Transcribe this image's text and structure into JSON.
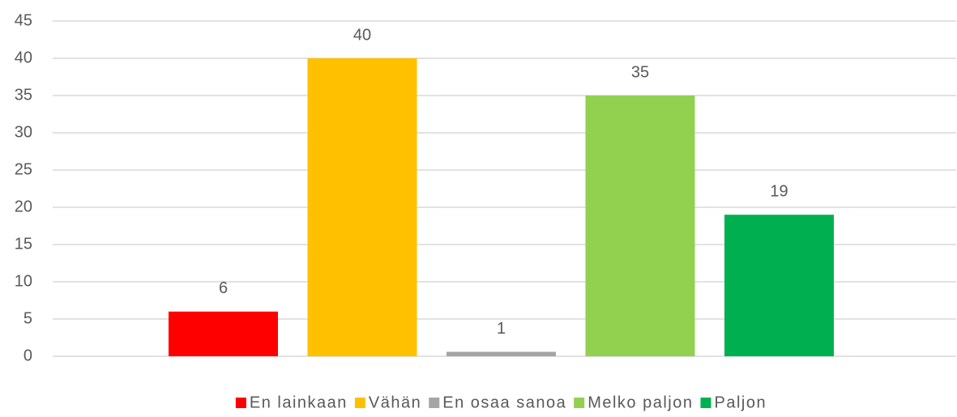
{
  "chart_data": {
    "type": "bar",
    "categories": [
      null
    ],
    "series": [
      {
        "name": "En lainkaan",
        "color": "#ff0000",
        "values": [
          6
        ]
      },
      {
        "name": "Vähän",
        "color": "#ffc000",
        "values": [
          40
        ]
      },
      {
        "name": "En osaa sanoa",
        "color": "#a5a5a5",
        "values": [
          0.6
        ],
        "value_labels": [
          "1"
        ]
      },
      {
        "name": "Melko paljon",
        "color": "#92d050",
        "values": [
          35
        ]
      },
      {
        "name": "Paljon",
        "color": "#00b050",
        "values": [
          19
        ]
      }
    ],
    "ylim": [
      0,
      45
    ],
    "yticks": [
      0,
      5,
      10,
      15,
      20,
      25,
      30,
      35,
      40,
      45
    ],
    "grid": true,
    "legend": "bottom"
  }
}
